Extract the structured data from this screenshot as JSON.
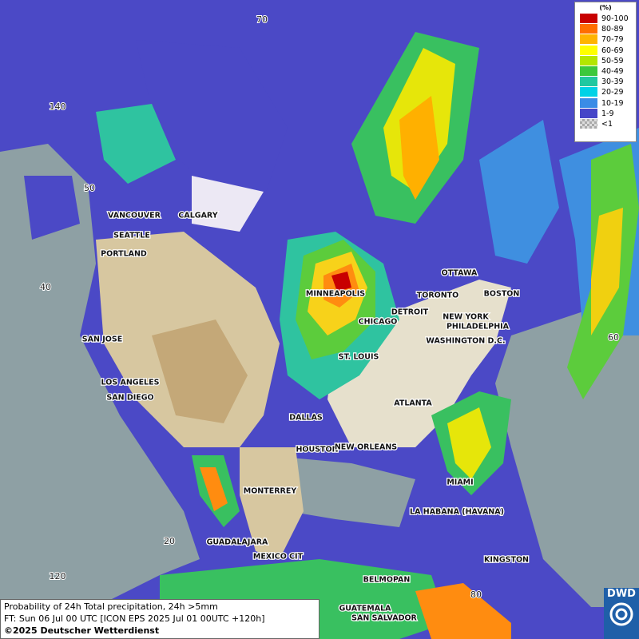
{
  "legend": {
    "title": "(%)",
    "entries": [
      {
        "label": "90-100",
        "color": "#c80000"
      },
      {
        "label": "80-89",
        "color": "#ff6e00"
      },
      {
        "label": "70-79",
        "color": "#ffb400"
      },
      {
        "label": "60-69",
        "color": "#ffff00"
      },
      {
        "label": "50-59",
        "color": "#b4e600"
      },
      {
        "label": "40-49",
        "color": "#3cc83c"
      },
      {
        "label": "30-39",
        "color": "#20c8a0"
      },
      {
        "label": "20-29",
        "color": "#00d2e6"
      },
      {
        "label": "10-19",
        "color": "#3a8ce6"
      },
      {
        "label": "1-9",
        "color": "#4646c8"
      },
      {
        "label": "<1",
        "color": "#aaaaaa"
      }
    ]
  },
  "map": {
    "cities": [
      "VANCOUVER",
      "CALGARY",
      "SEATTLE",
      "PORTLAND",
      "MINNEAPOLIS",
      "OTTAWA",
      "TORONTO",
      "DETROIT",
      "BOSTON",
      "CHICAGO",
      "NEW YORK",
      "PHILADELPHIA",
      "WASHINGTON D.C.",
      "SAN JOSE",
      "ST. LOUIS",
      "LOS ANGELES",
      "SAN DIEGO",
      "ATLANTA",
      "DALLAS",
      "HOUSTON",
      "NEW ORLEANS",
      "MIAMI",
      "MONTERREY",
      "LA HABANA (HAVANA)",
      "GUADALAJARA",
      "MEXICO CIT",
      "KINGSTON",
      "BELMOPAN",
      "GUATEMALA",
      "SAN SALVADOR"
    ],
    "grid_labels": [
      "70",
      "140",
      "50",
      "40",
      "60",
      "120",
      "20",
      "80"
    ]
  },
  "caption": {
    "lines": [
      "Probability of 24h Total precipitation, 24h >5mm",
      "FT: Sun 06 Jul 00 UTC [ICON EPS 2025 Jul 01 00UTC +120h]",
      "©2025 Deutscher Wetterdienst"
    ]
  },
  "logo": "DWD"
}
